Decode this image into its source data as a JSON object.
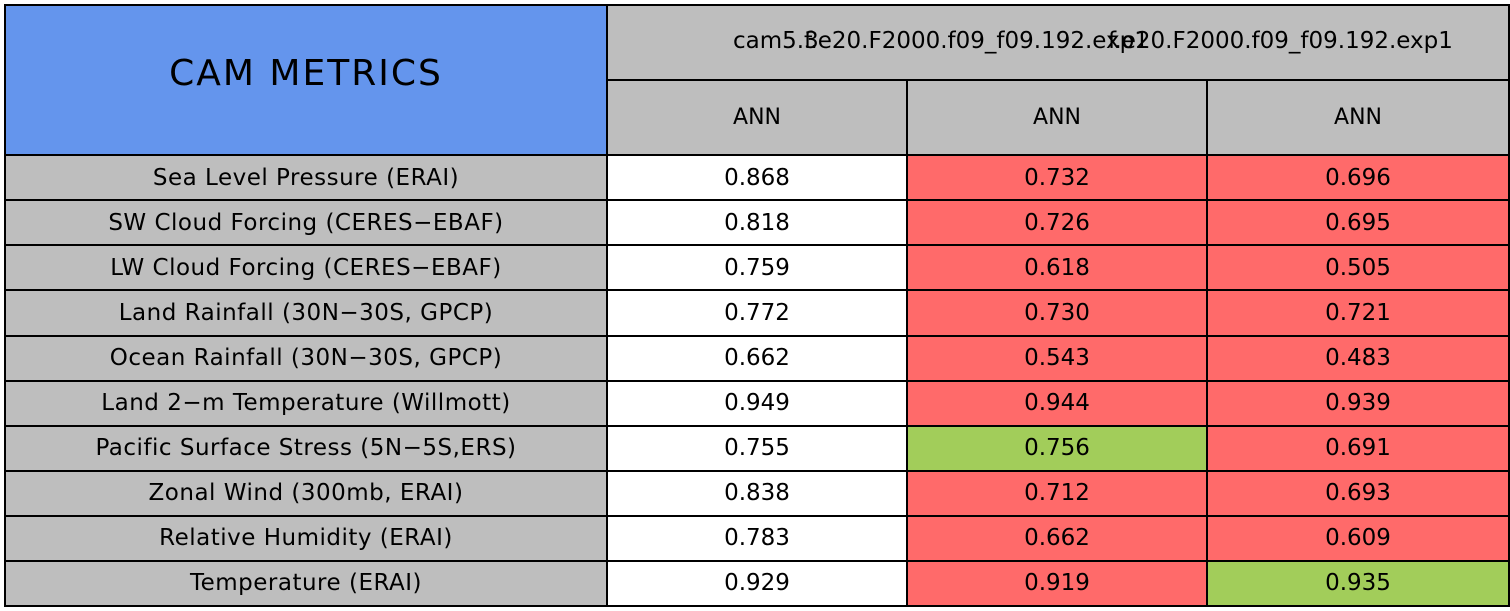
{
  "chart_data": {
    "type": "table",
    "title": "CAM METRICS",
    "columns": [
      {
        "model": "cam5.3",
        "season": "ANN"
      },
      {
        "model": "f.e20.F2000.f09_f09.192.exp1",
        "season": "ANN"
      },
      {
        "model": "f.e20.F2000.f09_f09.192.exp1",
        "season": "ANN"
      }
    ],
    "rows": [
      {
        "label": "Sea Level Pressure (ERAI)",
        "values": [
          "0.868",
          "0.732",
          "0.696"
        ],
        "status": [
          "base",
          "worse",
          "worse"
        ]
      },
      {
        "label": "SW Cloud Forcing (CERES−EBAF)",
        "values": [
          "0.818",
          "0.726",
          "0.695"
        ],
        "status": [
          "base",
          "worse",
          "worse"
        ]
      },
      {
        "label": "LW Cloud Forcing (CERES−EBAF)",
        "values": [
          "0.759",
          "0.618",
          "0.505"
        ],
        "status": [
          "base",
          "worse",
          "worse"
        ]
      },
      {
        "label": "Land Rainfall (30N−30S, GPCP)",
        "values": [
          "0.772",
          "0.730",
          "0.721"
        ],
        "status": [
          "base",
          "worse",
          "worse"
        ]
      },
      {
        "label": "Ocean Rainfall (30N−30S, GPCP)",
        "values": [
          "0.662",
          "0.543",
          "0.483"
        ],
        "status": [
          "base",
          "worse",
          "worse"
        ]
      },
      {
        "label": "Land 2−m Temperature (Willmott)",
        "values": [
          "0.949",
          "0.944",
          "0.939"
        ],
        "status": [
          "base",
          "worse",
          "worse"
        ]
      },
      {
        "label": "Pacific Surface Stress (5N−5S,ERS)",
        "values": [
          "0.755",
          "0.756",
          "0.691"
        ],
        "status": [
          "base",
          "better",
          "worse"
        ]
      },
      {
        "label": "Zonal Wind (300mb, ERAI)",
        "values": [
          "0.838",
          "0.712",
          "0.693"
        ],
        "status": [
          "base",
          "worse",
          "worse"
        ]
      },
      {
        "label": "Relative Humidity (ERAI)",
        "values": [
          "0.783",
          "0.662",
          "0.609"
        ],
        "status": [
          "base",
          "worse",
          "worse"
        ]
      },
      {
        "label": "Temperature (ERAI)",
        "values": [
          "0.929",
          "0.919",
          "0.935"
        ],
        "status": [
          "base",
          "worse",
          "better"
        ]
      }
    ]
  },
  "colors": {
    "title_bg": "#6495ED",
    "header_bg": "#BEBEBE",
    "label_bg": "#BEBEBE",
    "base_bg": "#FFFFFF",
    "worse_bg": "#FF6A6A",
    "better_bg": "#A2CD5A"
  }
}
